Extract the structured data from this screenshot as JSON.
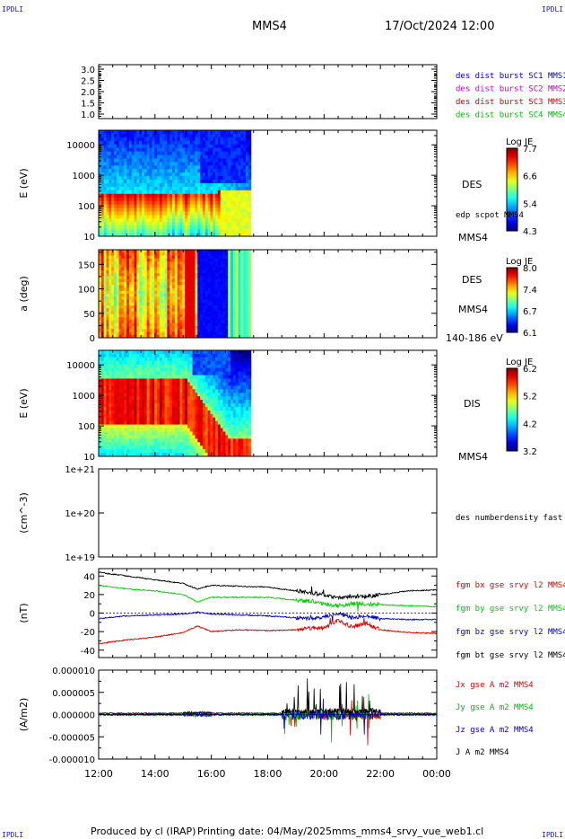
{
  "header": {
    "corner_label": "IPDLI",
    "spacecraft": "MMS4",
    "datetime": "17/Oct/2024 12:00"
  },
  "footer": {
    "produced_by": "Produced by cl (IRAP)",
    "printing_date": "Printing date: 04/May/2025",
    "script_name": "mms_mms4_srvy_vue_web1.cl"
  },
  "x_axis": {
    "ticks": [
      "12:00",
      "14:00",
      "16:00",
      "18:00",
      "20:00",
      "22:00",
      "00:00"
    ],
    "start_hour": 12,
    "end_hour": 24,
    "data_end_hour": 17.4
  },
  "chart_data": [
    {
      "id": "burst",
      "type": "line",
      "ylim": [
        0.8,
        3.2
      ],
      "ytick_values": [
        1.0,
        1.5,
        2.0,
        2.5,
        3.0
      ],
      "ytick_labels": [
        "1.0",
        "1.5",
        "2.0",
        "2.5",
        "3.0"
      ],
      "series": [
        {
          "name": "des dist burst SC1 MMS1",
          "color": "#0000cc",
          "values": []
        },
        {
          "name": "des dist burst SC2 MMS2",
          "color": "#cc00cc",
          "values": []
        },
        {
          "name": "des dist burst SC3 MMS3",
          "color": "#dd0000",
          "values": []
        },
        {
          "name": "des dist burst SC4 MMS4",
          "color": "#00bb00",
          "values": []
        }
      ]
    },
    {
      "id": "des_energy",
      "type": "heatmap",
      "ylabel": "E (eV)",
      "yscale": "log",
      "ylim": [
        10,
        30000
      ],
      "ytick_values": [
        10,
        100,
        1000,
        10000
      ],
      "ytick_labels": [
        "10",
        "100",
        "1000",
        "10000"
      ],
      "label": "DES",
      "sublabel": "edp scpot MMS4",
      "right_label": "MMS4",
      "colorbar": {
        "title": "Log JE",
        "ticks": [
          "7.7",
          "6.6",
          "5.4",
          "4.3"
        ],
        "min": 4.3,
        "max": 7.7
      }
    },
    {
      "id": "des_pitch",
      "type": "heatmap",
      "ylabel": "a (deg)",
      "ylim": [
        0,
        180
      ],
      "ytick_values": [
        0,
        50,
        100,
        150
      ],
      "ytick_labels": [
        "0",
        "50",
        "100",
        "150"
      ],
      "label": "DES",
      "sublabel": "MMS4",
      "right_label": "140-186 eV",
      "colorbar": {
        "title": "Log JE",
        "ticks": [
          "8.0",
          "7.4",
          "6.7",
          "6.1"
        ],
        "min": 6.1,
        "max": 8.0
      }
    },
    {
      "id": "dis_energy",
      "type": "heatmap",
      "ylabel": "E (eV)",
      "yscale": "log",
      "ylim": [
        10,
        30000
      ],
      "ytick_values": [
        10,
        100,
        1000,
        10000
      ],
      "ytick_labels": [
        "10",
        "100",
        "1000",
        "10000"
      ],
      "label": "DIS",
      "right_label": "MMS4",
      "colorbar": {
        "title": "Log JE",
        "ticks": [
          "6.2",
          "5.2",
          "4.2",
          "3.2"
        ],
        "min": 3.2,
        "max": 6.2
      }
    },
    {
      "id": "density",
      "type": "line",
      "ylabel": "(cm^-3)",
      "yscale": "log",
      "ylim": [
        1e+19,
        1e+21
      ],
      "ytick_labels": [
        "1e+21",
        "1e+20",
        "1e+19"
      ],
      "series": [
        {
          "name": "des numberdensity fast M",
          "color": "#000000",
          "values": []
        }
      ]
    },
    {
      "id": "bfield",
      "type": "line",
      "ylabel": "(nT)",
      "ylim": [
        -48,
        48
      ],
      "ytick_values": [
        40,
        20,
        0,
        -20,
        -40
      ],
      "ytick_labels": [
        "40",
        "20",
        "0",
        "-20",
        "-40"
      ],
      "x_hours": [
        12,
        13,
        14,
        15,
        15.5,
        16,
        17,
        18,
        19,
        19.5,
        20,
        20.5,
        21,
        21.5,
        22,
        23,
        24
      ],
      "series": [
        {
          "name": "fgm bx gse srvy l2 MMS4",
          "color": "#dd0000",
          "values": [
            -33,
            -29,
            -26,
            -21,
            -14,
            -20,
            -18,
            -19,
            -18,
            -16,
            -16,
            -8,
            -15,
            -11,
            -18,
            -21,
            -22
          ]
        },
        {
          "name": "fgm by gse srvy l2 MMS4",
          "color": "#00cc00",
          "values": [
            30,
            26,
            24,
            20,
            12,
            17,
            17,
            17,
            14,
            13,
            10,
            8,
            10,
            10,
            9,
            8,
            7
          ]
        },
        {
          "name": "fgm bz gse srvy l2 MMS4",
          "color": "#0000cc",
          "values": [
            -6,
            -3,
            -2,
            -1,
            1,
            -1,
            -2,
            -3,
            -5,
            -6,
            -4,
            0,
            -5,
            -3,
            -6,
            -7,
            -7
          ]
        },
        {
          "name": "fgm bt gse srvy l2 MMS4",
          "color": "#000000",
          "values": [
            44,
            40,
            36,
            32,
            26,
            30,
            29,
            28,
            24,
            22,
            20,
            16,
            18,
            18,
            20,
            24,
            25
          ]
        }
      ]
    },
    {
      "id": "current",
      "type": "line",
      "ylabel": "(A/m2)",
      "ylim": [
        -1e-05,
        1e-05
      ],
      "ytick_values": [
        1e-05,
        5e-06,
        0,
        -5e-06,
        -1e-05
      ],
      "ytick_labels": [
        "0.000010",
        "0.000005",
        "0.000000",
        "-0.000005",
        "-0.000010"
      ],
      "series": [
        {
          "name": "Jx gse A m2 MMS4",
          "color": "#dd0000",
          "values": []
        },
        {
          "name": "Jy gse A m2 MMS4",
          "color": "#00bb00",
          "values": []
        },
        {
          "name": "Jz gse A m2 MMS4",
          "color": "#0000cc",
          "values": []
        },
        {
          "name": "J A m2 MMS4",
          "color": "#000000",
          "values": []
        }
      ]
    }
  ]
}
